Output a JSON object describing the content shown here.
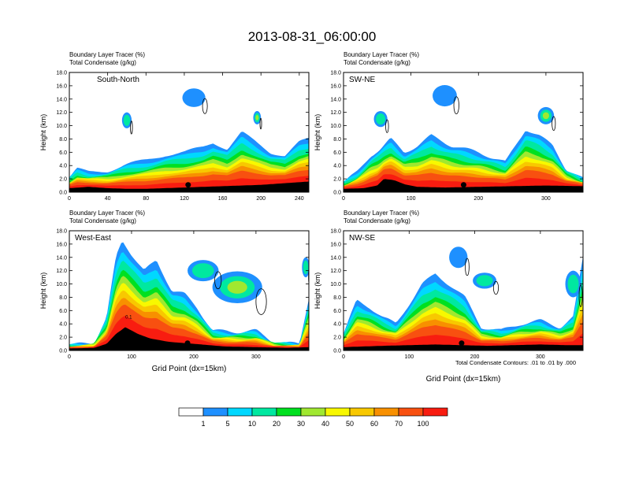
{
  "title": "2013-08-31_06:00:00",
  "colors": {
    "palette": [
      "#ffffff",
      "#1e90ff",
      "#00d8ff",
      "#00e8a0",
      "#00e020",
      "#a0e830",
      "#f8f800",
      "#f8c800",
      "#f89000",
      "#f85010",
      "#f81c10"
    ],
    "background": "#ffffff",
    "contour": "#000000"
  },
  "colorbar": {
    "labels": [
      "1",
      "5",
      "10",
      "20",
      "30",
      "40",
      "50",
      "60",
      "70",
      "100"
    ]
  },
  "footnote": "Total Condensate Contours: .01 to .01 by .000",
  "chart_data": [
    {
      "type": "heatmap",
      "id": "south-north",
      "label": "South-North",
      "subtitle1": "Boundary Layer Tracer   (%)",
      "subtitle2": "Total Condensate   (g/kg)",
      "ylabel": "Height (km)",
      "xlabel": "",
      "xlim": [
        0,
        250
      ],
      "ylim": [
        0,
        18
      ],
      "xticks": [
        "0",
        "40",
        "80",
        "120",
        "160",
        "200",
        "240"
      ],
      "xtick_values": [
        0,
        40,
        80,
        120,
        160,
        200,
        240
      ],
      "yticks": [
        "0.0",
        "2.0",
        "4.0",
        "6.0",
        "8.0",
        "10.0",
        "12.0",
        "14.0",
        "16.0",
        "18.0"
      ],
      "marker_x": 124,
      "marker_y": 1.1,
      "terrain": [
        [
          0,
          0.6
        ],
        [
          20,
          0.8
        ],
        [
          40,
          0.6
        ],
        [
          60,
          0.5
        ],
        [
          80,
          0.5
        ],
        [
          100,
          0.6
        ],
        [
          120,
          0.7
        ],
        [
          140,
          0.8
        ],
        [
          160,
          0.9
        ],
        [
          180,
          1.0
        ],
        [
          200,
          1.1
        ],
        [
          220,
          1.3
        ],
        [
          240,
          1.5
        ],
        [
          250,
          1.6
        ]
      ],
      "layer_top": [
        [
          0,
          2.2
        ],
        [
          8,
          3.5
        ],
        [
          20,
          3.0
        ],
        [
          40,
          3.2
        ],
        [
          60,
          4.2
        ],
        [
          80,
          4.8
        ],
        [
          100,
          5.6
        ],
        [
          120,
          6.0
        ],
        [
          140,
          6.8
        ],
        [
          150,
          7.5
        ],
        [
          165,
          6.5
        ],
        [
          180,
          9.0
        ],
        [
          190,
          8.0
        ],
        [
          210,
          6.0
        ],
        [
          225,
          5.5
        ],
        [
          240,
          7.5
        ],
        [
          250,
          8.0
        ]
      ],
      "blobs": [
        {
          "x": 130,
          "y": 14.2,
          "rx": 12,
          "ry": 1.4,
          "level": 1
        },
        {
          "x": 60,
          "y": 10.8,
          "rx": 5,
          "ry": 1.2,
          "level": 2
        },
        {
          "x": 196,
          "y": 11.2,
          "rx": 4,
          "ry": 1.0,
          "level": 3
        }
      ]
    },
    {
      "type": "heatmap",
      "id": "sw-ne",
      "label": "SW-NE",
      "subtitle1": "Boundary Layer Tracer   (%)",
      "subtitle2": "Total Condensate   (g/kg)",
      "ylabel": "Height (km)",
      "xlabel": "",
      "xlim": [
        0,
        355
      ],
      "ylim": [
        0,
        18
      ],
      "xticks": [
        "0",
        "100",
        "200",
        "300"
      ],
      "xtick_values": [
        0,
        100,
        200,
        300
      ],
      "yticks": [
        "0.0",
        "2.0",
        "4.0",
        "6.0",
        "8.0",
        "10.0",
        "12.0",
        "14.0",
        "16.0",
        "18.0"
      ],
      "marker_x": 178,
      "marker_y": 1.1,
      "terrain": [
        [
          0,
          0.5
        ],
        [
          30,
          0.6
        ],
        [
          50,
          1.0
        ],
        [
          60,
          2.0
        ],
        [
          75,
          1.8
        ],
        [
          90,
          1.2
        ],
        [
          110,
          0.8
        ],
        [
          150,
          0.7
        ],
        [
          200,
          0.8
        ],
        [
          250,
          0.9
        ],
        [
          300,
          1.0
        ],
        [
          355,
          0.9
        ]
      ],
      "layer_top": [
        [
          0,
          1.5
        ],
        [
          20,
          3.0
        ],
        [
          40,
          5.5
        ],
        [
          55,
          6.5
        ],
        [
          70,
          8.0
        ],
        [
          90,
          6.0
        ],
        [
          110,
          7.0
        ],
        [
          130,
          8.5
        ],
        [
          160,
          7.0
        ],
        [
          200,
          6.0
        ],
        [
          240,
          4.5
        ],
        [
          270,
          9.5
        ],
        [
          290,
          8.5
        ],
        [
          310,
          7.0
        ],
        [
          330,
          3.5
        ],
        [
          355,
          2.0
        ]
      ],
      "blobs": [
        {
          "x": 150,
          "y": 14.5,
          "rx": 18,
          "ry": 1.6,
          "level": 1
        },
        {
          "x": 55,
          "y": 11.0,
          "rx": 10,
          "ry": 1.2,
          "level": 2
        },
        {
          "x": 300,
          "y": 11.5,
          "rx": 12,
          "ry": 1.3,
          "level": 3
        }
      ]
    },
    {
      "type": "heatmap",
      "id": "west-east",
      "label": "West-East",
      "subtitle1": "Boundary Layer Tracer   (%)",
      "subtitle2": "Total Condensate   (g/kg)",
      "ylabel": "Height (km)",
      "xlabel": "Grid Point (dx=15km)",
      "xlim": [
        0,
        385
      ],
      "ylim": [
        0,
        18
      ],
      "xticks": [
        "0",
        "100",
        "200",
        "300"
      ],
      "xtick_values": [
        0,
        100,
        200,
        300
      ],
      "yticks": [
        "0.0",
        "2.0",
        "4.0",
        "6.0",
        "8.0",
        "10.0",
        "12.0",
        "14.0",
        "16.0",
        "18.0"
      ],
      "marker_x": 190,
      "marker_y": 1.1,
      "contour_label": "0.1",
      "terrain": [
        [
          0,
          0.3
        ],
        [
          40,
          0.4
        ],
        [
          60,
          1.0
        ],
        [
          75,
          2.5
        ],
        [
          90,
          3.5
        ],
        [
          110,
          2.5
        ],
        [
          130,
          1.8
        ],
        [
          160,
          1.3
        ],
        [
          200,
          1.0
        ],
        [
          250,
          0.6
        ],
        [
          300,
          0.5
        ],
        [
          350,
          0.4
        ],
        [
          385,
          0.5
        ]
      ],
      "layer_top": [
        [
          0,
          0.8
        ],
        [
          40,
          1.2
        ],
        [
          60,
          5.0
        ],
        [
          75,
          14.0
        ],
        [
          85,
          16.5
        ],
        [
          100,
          14.5
        ],
        [
          120,
          12.0
        ],
        [
          140,
          13.5
        ],
        [
          165,
          9.0
        ],
        [
          185,
          8.5
        ],
        [
          205,
          6.5
        ],
        [
          230,
          3.0
        ],
        [
          270,
          2.8
        ],
        [
          300,
          3.0
        ],
        [
          330,
          1.2
        ],
        [
          370,
          1.0
        ],
        [
          385,
          8.0
        ]
      ],
      "blobs": [
        {
          "x": 270,
          "y": 9.5,
          "rx": 40,
          "ry": 2.4,
          "level": 3
        },
        {
          "x": 215,
          "y": 12.0,
          "rx": 25,
          "ry": 1.6,
          "level": 2
        },
        {
          "x": 380,
          "y": 12.5,
          "rx": 6,
          "ry": 1.5,
          "level": 2
        }
      ]
    },
    {
      "type": "heatmap",
      "id": "nw-se",
      "label": "NW-SE",
      "subtitle1": "Boundary Layer Tracer   (%)",
      "subtitle2": "Total Condensate   (g/kg)",
      "ylabel": "Height (km)",
      "xlabel": "Grid Point (dx=15km)",
      "xlim": [
        0,
        365
      ],
      "ylim": [
        0,
        18
      ],
      "xticks": [
        "0",
        "100",
        "200",
        "300"
      ],
      "xtick_values": [
        0,
        100,
        200,
        300
      ],
      "yticks": [
        "0.0",
        "2.0",
        "4.0",
        "6.0",
        "8.0",
        "10.0",
        "12.0",
        "14.0",
        "16.0",
        "18.0"
      ],
      "marker_x": 180,
      "marker_y": 1.1,
      "terrain": [
        [
          0,
          0.5
        ],
        [
          30,
          0.6
        ],
        [
          60,
          0.7
        ],
        [
          100,
          0.8
        ],
        [
          140,
          0.9
        ],
        [
          180,
          0.8
        ],
        [
          220,
          0.7
        ],
        [
          260,
          0.8
        ],
        [
          300,
          0.9
        ],
        [
          340,
          0.8
        ],
        [
          365,
          0.8
        ]
      ],
      "layer_top": [
        [
          0,
          2.5
        ],
        [
          20,
          7.5
        ],
        [
          40,
          6.5
        ],
        [
          60,
          5.0
        ],
        [
          80,
          4.0
        ],
        [
          100,
          7.0
        ],
        [
          120,
          10.0
        ],
        [
          140,
          11.5
        ],
        [
          160,
          10.0
        ],
        [
          185,
          8.0
        ],
        [
          210,
          3.5
        ],
        [
          240,
          3.0
        ],
        [
          270,
          4.0
        ],
        [
          300,
          4.5
        ],
        [
          330,
          3.5
        ],
        [
          350,
          5.0
        ],
        [
          365,
          14.0
        ]
      ],
      "blobs": [
        {
          "x": 175,
          "y": 14.0,
          "rx": 14,
          "ry": 1.6,
          "level": 1
        },
        {
          "x": 215,
          "y": 10.5,
          "rx": 18,
          "ry": 1.2,
          "level": 2
        },
        {
          "x": 350,
          "y": 10.0,
          "rx": 12,
          "ry": 2.0,
          "level": 2
        }
      ]
    }
  ]
}
